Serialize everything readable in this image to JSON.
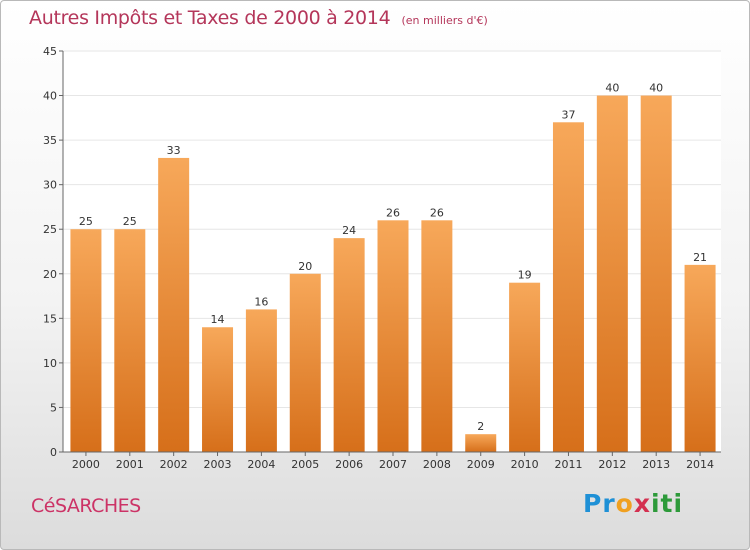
{
  "header": {
    "title": "Autres Impôts et Taxes de 2000 à 2014",
    "subtitle": "(en milliers d'€)"
  },
  "footer": {
    "place": "CéSARCHES",
    "logo_letters": [
      "Pr",
      "o",
      "x",
      "iti"
    ]
  },
  "colors": {
    "bar_top": "#f7a85a",
    "bar_bottom": "#d66f1a",
    "title": "#b4365a",
    "grid": "#e6e6e6"
  },
  "chart_data": {
    "type": "bar",
    "categories": [
      "2000",
      "2001",
      "2002",
      "2003",
      "2004",
      "2005",
      "2006",
      "2007",
      "2008",
      "2009",
      "2010",
      "2011",
      "2012",
      "2013",
      "2014"
    ],
    "values": [
      25,
      25,
      33,
      14,
      16,
      20,
      24,
      26,
      26,
      2,
      19,
      37,
      40,
      40,
      21
    ],
    "title": "Autres Impôts et Taxes de 2000 à 2014",
    "subtitle": "(en milliers d'€)",
    "ylim": [
      0,
      45
    ],
    "yticks": [
      0,
      5,
      10,
      15,
      20,
      25,
      30,
      35,
      40,
      45
    ],
    "grid": true,
    "data_labels": true
  }
}
